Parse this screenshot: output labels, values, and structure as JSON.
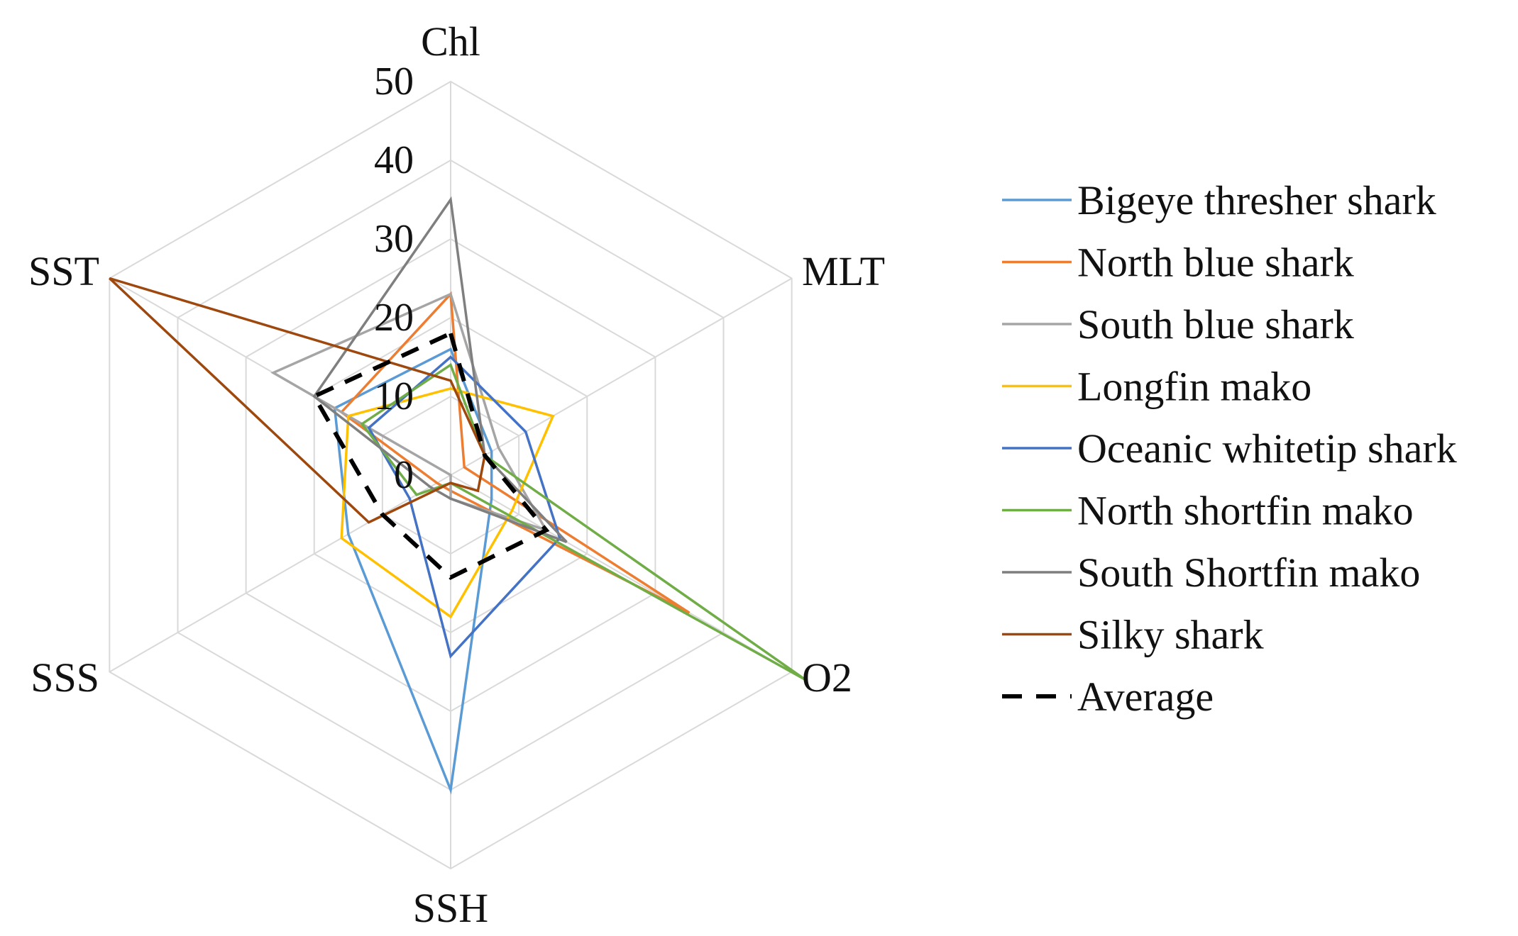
{
  "chart_data": {
    "type": "radar",
    "title": "",
    "axes": [
      "Chl",
      "MLT",
      "O2",
      "SSH",
      "SSS",
      "SST"
    ],
    "r_ticks": [
      "0",
      "10",
      "20",
      "30",
      "40",
      "50"
    ],
    "rlim": [
      0,
      50
    ],
    "grid": true,
    "legend_position": "right",
    "series": [
      {
        "name": "Bigeye thresher shark",
        "color": "#5B9BD5",
        "dashed": false,
        "values": [
          16,
          6,
          6,
          40,
          15,
          17
        ]
      },
      {
        "name": "North blue shark",
        "color": "#ED7D31",
        "dashed": false,
        "values": [
          23,
          2,
          35,
          2,
          2,
          16
        ]
      },
      {
        "name": "South blue shark",
        "color": "#A5A5A5",
        "dashed": false,
        "values": [
          23,
          7,
          14,
          3,
          0,
          26
        ]
      },
      {
        "name": "Longfin mako",
        "color": "#FFC000",
        "dashed": false,
        "values": [
          11,
          15,
          9,
          18,
          16,
          15
        ]
      },
      {
        "name": "Oceanic whitetip shark",
        "color": "#4472C4",
        "dashed": false,
        "values": [
          15,
          11,
          16,
          23,
          6,
          12
        ]
      },
      {
        "name": "North shortfin mako",
        "color": "#70AD47",
        "dashed": false,
        "values": [
          14,
          5,
          52,
          1,
          5,
          13
        ]
      },
      {
        "name": "South Shortfin mako",
        "color": "#7F7F7F",
        "dashed": false,
        "values": [
          35,
          5,
          17,
          3,
          3,
          20
        ]
      },
      {
        "name": "Silky shark",
        "color": "#9E480E",
        "dashed": false,
        "values": [
          12,
          5,
          4,
          1,
          12,
          50
        ]
      },
      {
        "name": "Average",
        "color": "#000000",
        "dashed": true,
        "values": [
          18,
          5,
          14,
          13,
          10,
          20
        ]
      }
    ]
  }
}
